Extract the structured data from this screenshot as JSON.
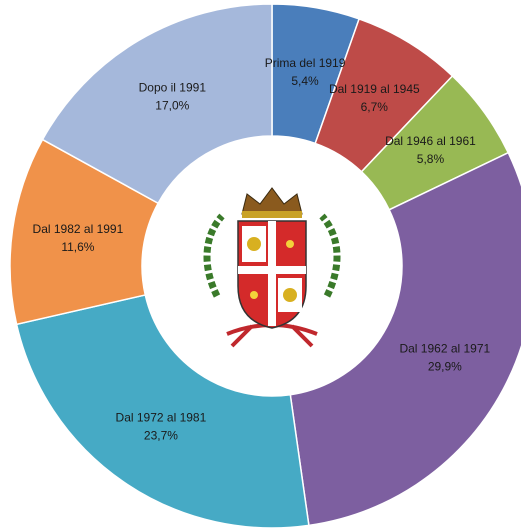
{
  "chart_data": {
    "type": "pie",
    "donut": true,
    "categories": [
      "Prima del 1919",
      "Dal 1919 al 1945",
      "Dal 1946 al 1961",
      "Dal 1962 al 1971",
      "Dal 1972 al 1981",
      "Dal 1982 al 1991",
      "Dopo il 1991"
    ],
    "values": [
      5.4,
      6.7,
      5.8,
      29.9,
      23.7,
      11.6,
      17.0
    ],
    "value_labels": [
      "5,4%",
      "6,7%",
      "5,8%",
      "29,9%",
      "23,7%",
      "11,6%",
      "17,0%"
    ],
    "colors": [
      "#4a7ebb",
      "#be4b48",
      "#98b954",
      "#7d5fa0",
      "#46aac5",
      "#f0924a",
      "#a5b8db"
    ]
  }
}
